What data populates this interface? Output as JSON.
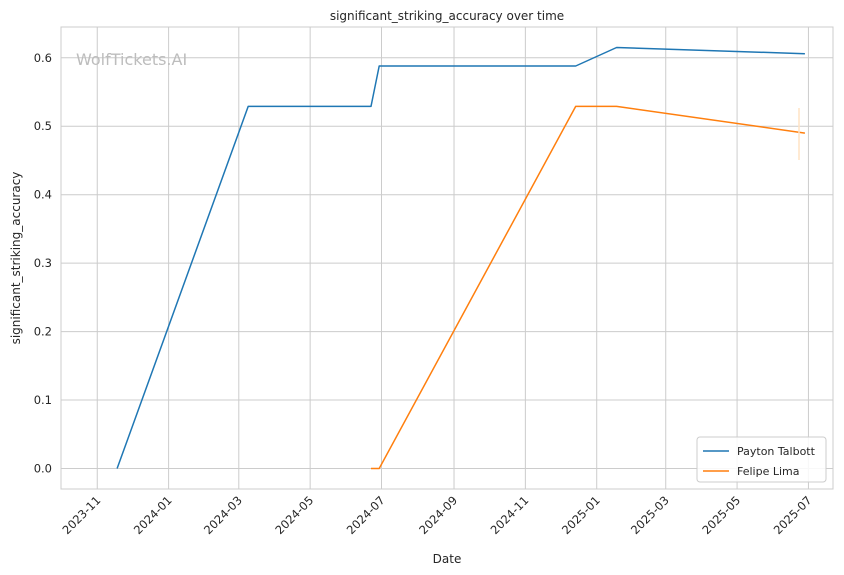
{
  "watermark": "WolfTickets.AI",
  "chart_data": {
    "type": "line",
    "title": "significant_striking_accuracy over time",
    "xlabel": "Date",
    "ylabel": "significant_striking_accuracy",
    "x_ticks": [
      "2023-11",
      "2024-01",
      "2024-03",
      "2024-05",
      "2024-07",
      "2024-09",
      "2024-11",
      "2025-01",
      "2025-03",
      "2025-05",
      "2025-07"
    ],
    "y_ticks": [
      "0.0",
      "0.1",
      "0.2",
      "0.3",
      "0.4",
      "0.5",
      "0.6"
    ],
    "xlim": [
      "2023-10-01",
      "2025-07-22"
    ],
    "ylim": [
      -0.03,
      0.645
    ],
    "grid": true,
    "legend_position": "lower-right",
    "series": [
      {
        "name": "Payton Talbott",
        "color": "#1f77b4",
        "points": [
          {
            "x": "2023-11-18",
            "y": 0.0
          },
          {
            "x": "2024-03-09",
            "y": 0.529
          },
          {
            "x": "2024-06-22",
            "y": 0.529
          },
          {
            "x": "2024-06-29",
            "y": 0.588
          },
          {
            "x": "2024-12-14",
            "y": 0.588
          },
          {
            "x": "2025-01-18",
            "y": 0.615
          },
          {
            "x": "2025-06-28",
            "y": 0.606
          }
        ]
      },
      {
        "name": "Felipe Lima",
        "color": "#ff7f0e",
        "points": [
          {
            "x": "2024-06-22",
            "y": 0.0
          },
          {
            "x": "2024-06-29",
            "y": 0.0
          },
          {
            "x": "2024-12-14",
            "y": 0.529
          },
          {
            "x": "2025-01-18",
            "y": 0.529
          },
          {
            "x": "2025-06-28",
            "y": 0.49
          }
        ]
      }
    ]
  }
}
